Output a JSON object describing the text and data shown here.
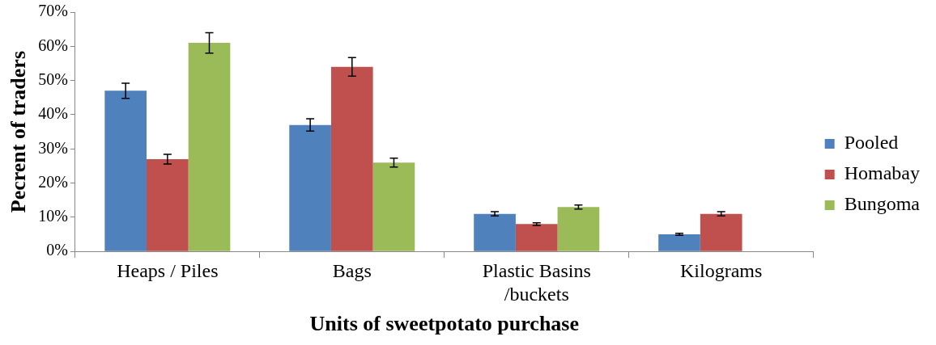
{
  "chart_data": {
    "type": "bar",
    "xlabel": "Units of sweetpotato purchase",
    "ylabel": "Pecrent of traders",
    "categories": [
      "Heaps / Piles",
      "Bags",
      "Plastic Basins /buckets",
      "Kilograms"
    ],
    "series": [
      {
        "name": "Pooled",
        "color": "#4f81bd",
        "values": [
          47,
          37,
          11,
          5
        ],
        "errors": [
          2.2,
          1.8,
          0.6,
          0.3
        ]
      },
      {
        "name": "Homabay",
        "color": "#c0504d",
        "values": [
          27,
          54,
          8,
          11
        ],
        "errors": [
          1.4,
          2.7,
          0.4,
          0.6
        ]
      },
      {
        "name": "Bungoma",
        "color": "#9bbb59",
        "values": [
          61,
          26,
          13,
          null
        ],
        "errors": [
          3,
          1.3,
          0.6,
          null
        ]
      }
    ],
    "ylim": [
      0,
      70
    ],
    "yticks": [
      {
        "value": 0,
        "label": "0%"
      },
      {
        "value": 10,
        "label": "10%"
      },
      {
        "value": 20,
        "label": "20%"
      },
      {
        "value": 30,
        "label": "30%"
      },
      {
        "value": 40,
        "label": "40%"
      },
      {
        "value": 50,
        "label": "50%"
      },
      {
        "value": 60,
        "label": "60%"
      },
      {
        "value": 70,
        "label": "70%"
      }
    ],
    "grid": false,
    "legend": "right"
  }
}
